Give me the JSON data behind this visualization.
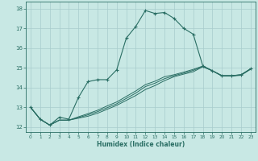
{
  "title": "",
  "xlabel": "Humidex (Indice chaleur)",
  "ylabel": "",
  "bg_color": "#c8e8e4",
  "grid_color": "#a8cccc",
  "line_color": "#2a6e64",
  "xlim": [
    -0.5,
    23.5
  ],
  "ylim": [
    11.75,
    18.35
  ],
  "yticks": [
    12,
    13,
    14,
    15,
    16,
    17,
    18
  ],
  "xticks": [
    0,
    1,
    2,
    3,
    4,
    5,
    6,
    7,
    8,
    9,
    10,
    11,
    12,
    13,
    14,
    15,
    16,
    17,
    18,
    19,
    20,
    21,
    22,
    23
  ],
  "series_main": [
    13.0,
    12.4,
    12.1,
    12.5,
    12.4,
    13.5,
    14.3,
    14.4,
    14.4,
    14.9,
    16.5,
    17.1,
    17.9,
    17.75,
    17.8,
    17.5,
    17.0,
    16.7,
    15.1,
    14.85,
    14.6,
    14.6,
    14.65,
    14.95
  ],
  "series_flat": [
    [
      13.0,
      12.4,
      12.1,
      12.35,
      12.35,
      12.45,
      12.55,
      12.7,
      12.9,
      13.1,
      13.35,
      13.6,
      13.9,
      14.1,
      14.35,
      14.55,
      14.68,
      14.8,
      15.05,
      14.85,
      14.58,
      14.58,
      14.62,
      14.93
    ],
    [
      13.0,
      12.4,
      12.1,
      12.35,
      12.35,
      12.48,
      12.62,
      12.78,
      12.98,
      13.18,
      13.45,
      13.72,
      14.05,
      14.22,
      14.45,
      14.6,
      14.73,
      14.87,
      15.07,
      14.85,
      14.6,
      14.6,
      14.64,
      14.94
    ],
    [
      13.0,
      12.4,
      12.1,
      12.35,
      12.35,
      12.52,
      12.68,
      12.85,
      13.07,
      13.27,
      13.55,
      13.83,
      14.15,
      14.32,
      14.55,
      14.65,
      14.78,
      14.92,
      15.09,
      14.85,
      14.6,
      14.6,
      14.65,
      14.95
    ]
  ]
}
